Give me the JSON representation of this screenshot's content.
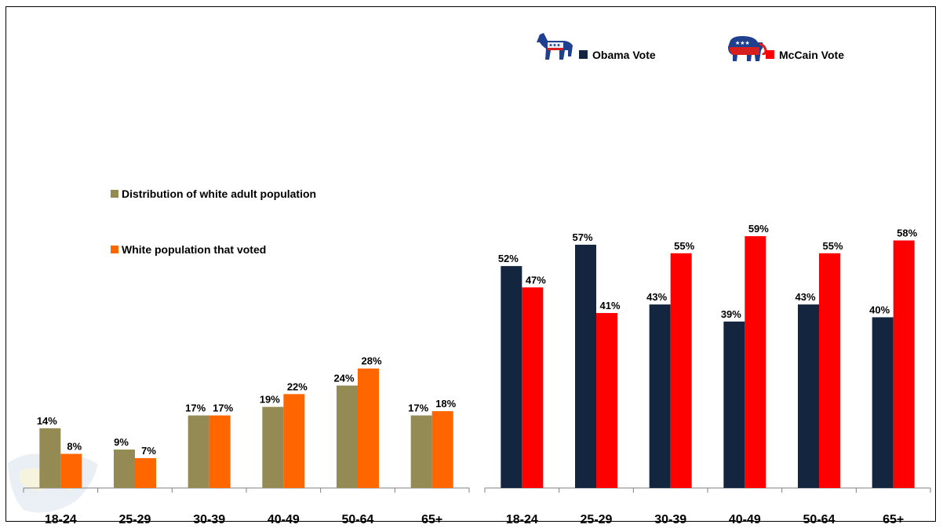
{
  "chart_data": [
    {
      "type": "bar",
      "title": "",
      "categories": [
        "18-24",
        "25-29",
        "30-39",
        "40-49",
        "50-64",
        "65+"
      ],
      "series": [
        {
          "name": "Distribution of white adult population",
          "color": "#948a54",
          "values": [
            14,
            9,
            17,
            19,
            24,
            17
          ],
          "labels": [
            "14%",
            "9%",
            "17%",
            "19%",
            "24%",
            "17%"
          ]
        },
        {
          "name": "White population that voted",
          "color": "#ff6600",
          "values": [
            8,
            7,
            17,
            22,
            28,
            18
          ],
          "labels": [
            "8%",
            "7%",
            "17%",
            "22%",
            "28%",
            "18%"
          ]
        }
      ],
      "ylim": [
        0,
        60
      ],
      "legend_position": "top-left",
      "grid": false
    },
    {
      "type": "bar",
      "title": "",
      "categories": [
        "18-24",
        "25-29",
        "30-39",
        "40-49",
        "50-64",
        "65+"
      ],
      "series": [
        {
          "name": "Obama Vote",
          "color": "#14263f",
          "icon": "democrat-donkey-icon",
          "values": [
            52,
            57,
            43,
            39,
            43,
            40
          ],
          "labels": [
            "52%",
            "57%",
            "43%",
            "39%",
            "43%",
            "40%"
          ]
        },
        {
          "name": "McCain Vote",
          "color": "#ff0000",
          "icon": "republican-elephant-icon",
          "values": [
            47,
            41,
            55,
            59,
            55,
            58
          ],
          "labels": [
            "47%",
            "41%",
            "55%",
            "59%",
            "55%",
            "58%"
          ]
        }
      ],
      "ylim": [
        0,
        60
      ],
      "legend_position": "top-right",
      "grid": false
    }
  ]
}
